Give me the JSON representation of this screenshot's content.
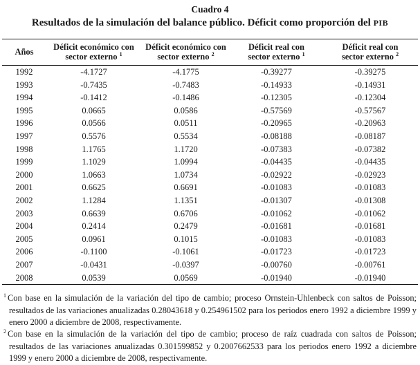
{
  "caption": {
    "number": "Cuadro 4",
    "title_prefix": "Resultados de la simulación del balance público. Déficit como proporción del ",
    "title_smallcaps": "PIB"
  },
  "table": {
    "columns": [
      {
        "line1": "Años",
        "line2": "",
        "sup": ""
      },
      {
        "line1": "Déficit económico con",
        "line2": "sector externo",
        "sup": "1"
      },
      {
        "line1": "Déficit económico con",
        "line2": "sector externo",
        "sup": "2"
      },
      {
        "line1": "Déficit real con",
        "line2": "sector externo",
        "sup": "1"
      },
      {
        "line1": "Déficit real con",
        "line2": "sector externo",
        "sup": "2"
      }
    ],
    "rows": [
      {
        "year": "1992",
        "values": [
          "-4.1727",
          "-4.1775",
          "-0.39277",
          "-0.39275"
        ]
      },
      {
        "year": "1993",
        "values": [
          "-0.7435",
          "-0.7483",
          "-0.14933",
          "-0.14931"
        ]
      },
      {
        "year": "1994",
        "values": [
          "-0.1412",
          "-0.1486",
          "-0.12305",
          "-0.12304"
        ]
      },
      {
        "year": "1995",
        "values": [
          "0.0665",
          "0.0586",
          "-0.57569",
          "-0.57567"
        ]
      },
      {
        "year": "1996",
        "values": [
          "0.0566",
          "0.0511",
          "-0.20965",
          "-0.20963"
        ]
      },
      {
        "year": "1997",
        "values": [
          "0.5576",
          "0.5534",
          "-0.08188",
          "-0.08187"
        ]
      },
      {
        "year": "1998",
        "values": [
          "1.1765",
          "1.1720",
          "-0.07383",
          "-0.07382"
        ]
      },
      {
        "year": "1999",
        "values": [
          "1.1029",
          "1.0994",
          "-0.04435",
          "-0.04435"
        ]
      },
      {
        "year": "2000",
        "values": [
          "1.0663",
          "1.0734",
          "-0.02922",
          "-0.02923"
        ]
      },
      {
        "year": "2001",
        "values": [
          "0.6625",
          "0.6691",
          "-0.01083",
          "-0.01083"
        ]
      },
      {
        "year": "2002",
        "values": [
          "1.1284",
          "1.1351",
          "-0.01307",
          "-0.01308"
        ]
      },
      {
        "year": "2003",
        "values": [
          "0.6639",
          "0.6706",
          "-0.01062",
          "-0.01062"
        ]
      },
      {
        "year": "2004",
        "values": [
          "0.2414",
          "0.2479",
          "-0.01681",
          "-0.01681"
        ]
      },
      {
        "year": "2005",
        "values": [
          "0.0961",
          "0.1015",
          "-0.01083",
          "-0.01083"
        ]
      },
      {
        "year": "2006",
        "values": [
          "-0.1100",
          "-0.1061",
          "-0.01723",
          "-0.01723"
        ]
      },
      {
        "year": "2007",
        "values": [
          "-0.0431",
          "-0.0397",
          "-0.00760",
          "-0.00761"
        ]
      },
      {
        "year": "2008",
        "values": [
          "0.0539",
          "0.0569",
          "-0.01940",
          "-0.01940"
        ]
      }
    ]
  },
  "footnotes": [
    {
      "marker": "1",
      "text": "Con base en la simulación de la variación del tipo de cambio; proceso Ornstein-Uhlenbeck con saltos de Poisson; resultados de las variaciones anualizadas 0.28043618 y 0.254961502 para los periodos enero 1992 a diciembre 1999 y enero 2000 a diciembre de 2008, respectivamente."
    },
    {
      "marker": "2",
      "text": "Con base en la simulación de la variación del tipo de cambio; proceso de raíz cuadrada con saltos de Poisson; resultados de las variaciones anualizadas 0.301599852 y 0.2007662533 para los periodos enero 1992 a diciembre 1999 y enero 2000 a diciembre de 2008, respectivamente."
    }
  ]
}
